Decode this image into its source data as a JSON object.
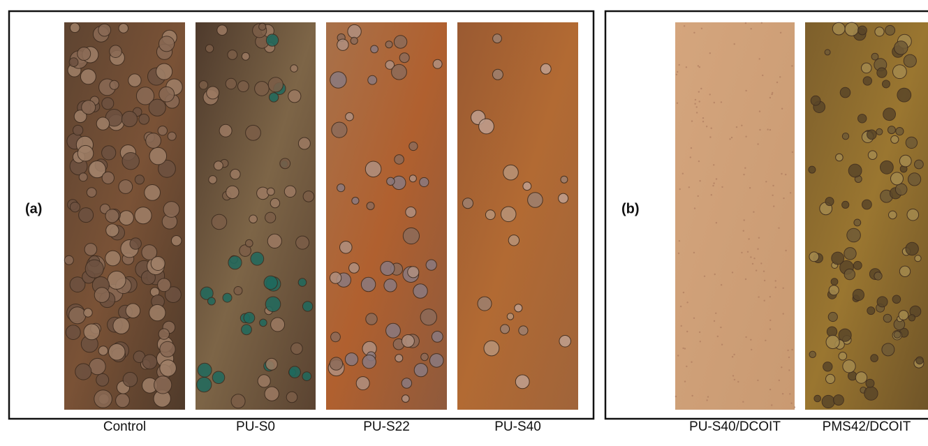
{
  "panel_a": {
    "label": "(a)",
    "samples": [
      "Control",
      "PU-S0",
      "PU-S22",
      "PU-S40"
    ]
  },
  "panel_b": {
    "label": "(b)",
    "samples": [
      "PU-S40/DCOIT",
      "PMS42/DCOIT"
    ]
  }
}
